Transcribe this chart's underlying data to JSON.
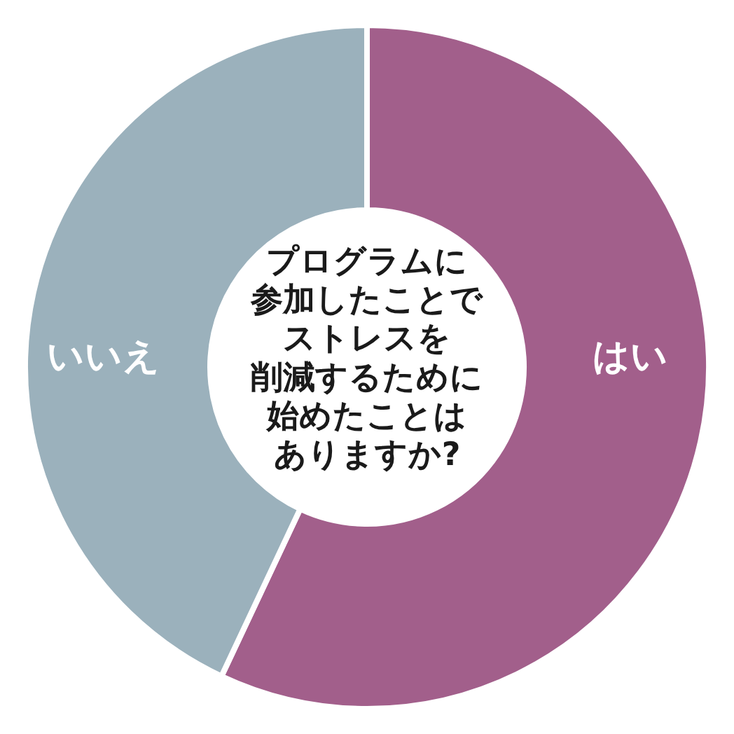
{
  "chart_data": {
    "type": "donut",
    "title": "プログラムに参加したことでストレスを削減するために始めたことはありますか?",
    "categories": [
      "はい",
      "いいえ"
    ],
    "values": [
      57,
      43
    ],
    "colors": [
      "#a25f8b",
      "#9bb1bc"
    ]
  }
}
